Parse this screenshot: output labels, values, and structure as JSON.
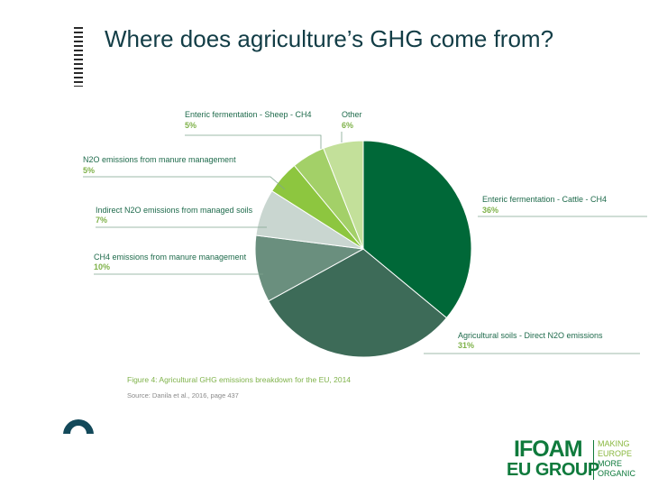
{
  "slide": {
    "title": "Where does agriculture’s GHG come from?"
  },
  "chart_data": {
    "type": "pie",
    "slices": [
      {
        "label": "Enteric fermentation - Cattle - CH4",
        "value": 36,
        "value_label": "36%",
        "color": "#006838"
      },
      {
        "label": "Agricultural soils - Direct N2O emissions",
        "value": 31,
        "value_label": "31%",
        "color": "#3d6b58"
      },
      {
        "label": "CH4 emissions from manure management",
        "value": 10,
        "value_label": "10%",
        "color": "#6a8f7e"
      },
      {
        "label": "Indirect N2O emissions from managed soils",
        "value": 7,
        "value_label": "7%",
        "color": "#c9d6d0"
      },
      {
        "label": "N2O emissions from manure management",
        "value": 5,
        "value_label": "5%",
        "color": "#8dc63f"
      },
      {
        "label": "Enteric fermentation - Sheep - CH4",
        "value": 5,
        "value_label": "5%",
        "color": "#a3d068"
      },
      {
        "label": "Other",
        "value": 6,
        "value_label": "6%",
        "color": "#c3e09a"
      }
    ],
    "caption": "Figure 4: Agricultural GHG emissions breakdown for the EU, 2014",
    "source": "Source: Danila et al., 2016, page 437"
  },
  "logo": {
    "name_top": "IFOAM",
    "name_bottom": "EU GROUP",
    "tagline": [
      "MAKING",
      "EUROPE",
      "MORE",
      "ORGANIC"
    ]
  },
  "colors": {
    "title": "#123d46",
    "label": "#1f6b4c",
    "percent": "#7fb24a",
    "leader": "#7fa58f",
    "brand": "#0f7a3c"
  },
  "icons": {
    "nav": "back-arrow-icon"
  }
}
